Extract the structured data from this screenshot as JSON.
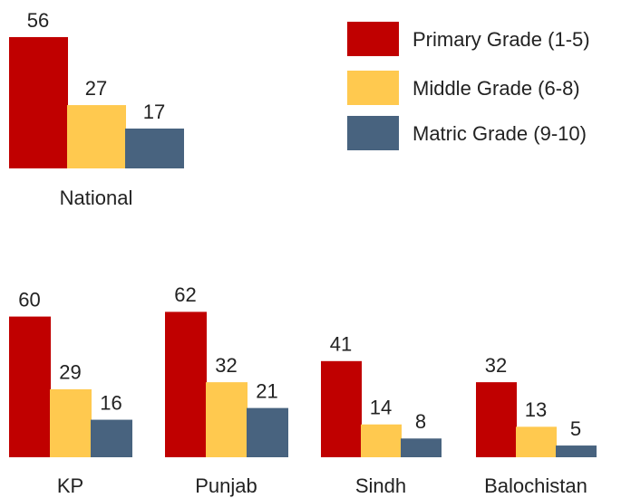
{
  "chart_data": {
    "type": "bar",
    "categories": [
      "National",
      "KP",
      "Punjab",
      "Sindh",
      "Balochistan"
    ],
    "series": [
      {
        "name": "Primary Grade (1-5)",
        "color": "#c00000",
        "values": [
          56,
          60,
          62,
          41,
          32
        ]
      },
      {
        "name": "Middle Grade (6-8)",
        "color": "#ffc94f",
        "values": [
          27,
          29,
          32,
          14,
          13
        ]
      },
      {
        "name": "Matric Grade (9-10)",
        "color": "#48637f",
        "values": [
          17,
          16,
          21,
          8,
          5
        ]
      }
    ],
    "legend": "top-right"
  }
}
